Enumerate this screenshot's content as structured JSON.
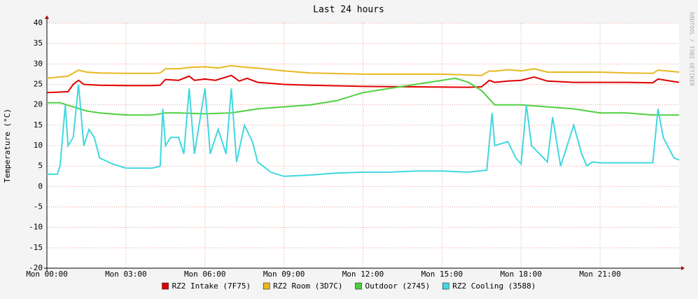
{
  "chart_data": {
    "type": "line",
    "title": "Last 24 hours",
    "y_label": "Temperature (°C)",
    "watermark": "RRDTOOL / TOBI OETIKER",
    "xlim": [
      0,
      24
    ],
    "xticks": [
      {
        "value": 0,
        "label": "Mon 00:00"
      },
      {
        "value": 3,
        "label": "Mon 03:00"
      },
      {
        "value": 6,
        "label": "Mon 06:00"
      },
      {
        "value": 9,
        "label": "Mon 09:00"
      },
      {
        "value": 12,
        "label": "Mon 12:00"
      },
      {
        "value": 15,
        "label": "Mon 15:00"
      },
      {
        "value": 18,
        "label": "Mon 18:00"
      },
      {
        "value": 21,
        "label": "Mon 21:00"
      }
    ],
    "ylim": [
      -20,
      40
    ],
    "yticks": [
      -20,
      -15,
      -10,
      -5,
      0,
      5,
      10,
      15,
      20,
      25,
      30,
      35,
      40
    ],
    "grid": true,
    "legend": "bottom",
    "series": [
      {
        "name": "RZ2 Intake (7F75)",
        "color": "#e00000",
        "x": [
          0,
          0.8,
          1.0,
          1.2,
          1.4,
          2,
          3,
          4,
          4.3,
          4.5,
          5,
          5.4,
          5.6,
          6,
          6.4,
          7,
          7.3,
          7.6,
          8,
          9,
          10,
          12,
          14,
          16,
          16.5,
          16.8,
          17,
          17.5,
          18,
          18.5,
          19,
          20,
          21,
          22,
          23,
          23.2,
          24
        ],
        "values": [
          23,
          23.2,
          25,
          26,
          25,
          24.8,
          24.7,
          24.7,
          24.8,
          26.2,
          26,
          27,
          26,
          26.3,
          26,
          27.2,
          25.8,
          26.5,
          25.5,
          25,
          24.8,
          24.5,
          24.4,
          24.3,
          24.4,
          26,
          25.5,
          25.8,
          26,
          26.8,
          25.8,
          25.5,
          25.5,
          25.5,
          25.4,
          26.3,
          25.5
        ]
      },
      {
        "name": "RZ2 Room (3D7C)",
        "color": "#e8b820",
        "x": [
          0,
          0.8,
          1.2,
          1.5,
          2,
          3,
          4,
          4.3,
          4.5,
          5,
          5.5,
          6,
          6.5,
          7,
          7.5,
          8,
          9,
          10,
          12,
          15,
          16.5,
          16.8,
          17,
          17.5,
          18,
          18.5,
          19,
          20,
          21,
          22,
          23,
          23.2,
          24
        ],
        "values": [
          26.5,
          27,
          28.5,
          28,
          27.8,
          27.7,
          27.7,
          27.8,
          28.8,
          28.8,
          29.2,
          29.3,
          29,
          29.6,
          29.2,
          29,
          28.3,
          27.8,
          27.5,
          27.5,
          27.2,
          28.3,
          28.2,
          28.6,
          28.3,
          28.8,
          28,
          28,
          28,
          27.8,
          27.7,
          28.5,
          28
        ]
      },
      {
        "name": "Outdoor (2745)",
        "color": "#50d040",
        "x": [
          0,
          0.5,
          1,
          1.5,
          2,
          3,
          4,
          4.5,
          5,
          6,
          7,
          7.5,
          8,
          9,
          10,
          11,
          12,
          13,
          14,
          15,
          15.5,
          16,
          16.5,
          17,
          18,
          19,
          20,
          21,
          22,
          23,
          24
        ],
        "values": [
          20.5,
          20.5,
          19.5,
          18.5,
          18,
          17.5,
          17.5,
          18,
          18,
          17.8,
          18,
          18.5,
          19,
          19.5,
          20,
          21,
          23,
          24,
          25,
          26,
          26.5,
          25.5,
          23.5,
          20,
          20,
          19.5,
          19,
          18,
          18,
          17.5,
          17.5
        ]
      },
      {
        "name": "RZ2 Cooling (3588)",
        "color": "#40d8e0",
        "x": [
          0,
          0.4,
          0.5,
          0.7,
          0.8,
          1,
          1.2,
          1.4,
          1.6,
          1.8,
          2,
          2.5,
          3,
          4,
          4.3,
          4.4,
          4.5,
          4.7,
          5,
          5.2,
          5.4,
          5.6,
          6,
          6.2,
          6.5,
          6.8,
          7,
          7.2,
          7.5,
          7.8,
          8,
          8.5,
          9,
          10,
          11,
          12,
          13,
          14,
          15,
          16,
          16.7,
          16.9,
          17,
          17.5,
          17.8,
          18,
          18.2,
          18.4,
          19,
          19.2,
          19.5,
          20,
          20.3,
          20.5,
          20.7,
          21,
          22,
          23,
          23.2,
          23.4,
          23.6,
          23.8,
          24
        ],
        "values": [
          3,
          3,
          5,
          20,
          10,
          12,
          25,
          10,
          14,
          12,
          7,
          5.5,
          4.5,
          4.5,
          5,
          19,
          10,
          12,
          12,
          8,
          24,
          8,
          24,
          8,
          14,
          8,
          24,
          6,
          15,
          11,
          6,
          3.5,
          2.5,
          2.8,
          3.3,
          3.5,
          3.5,
          3.8,
          3.8,
          3.5,
          4,
          18,
          10,
          11,
          7,
          5.5,
          20,
          10,
          6,
          17,
          5,
          15,
          8,
          5,
          6,
          5.8,
          5.8,
          5.8,
          19,
          12,
          9.5,
          7,
          6.5
        ]
      }
    ]
  }
}
